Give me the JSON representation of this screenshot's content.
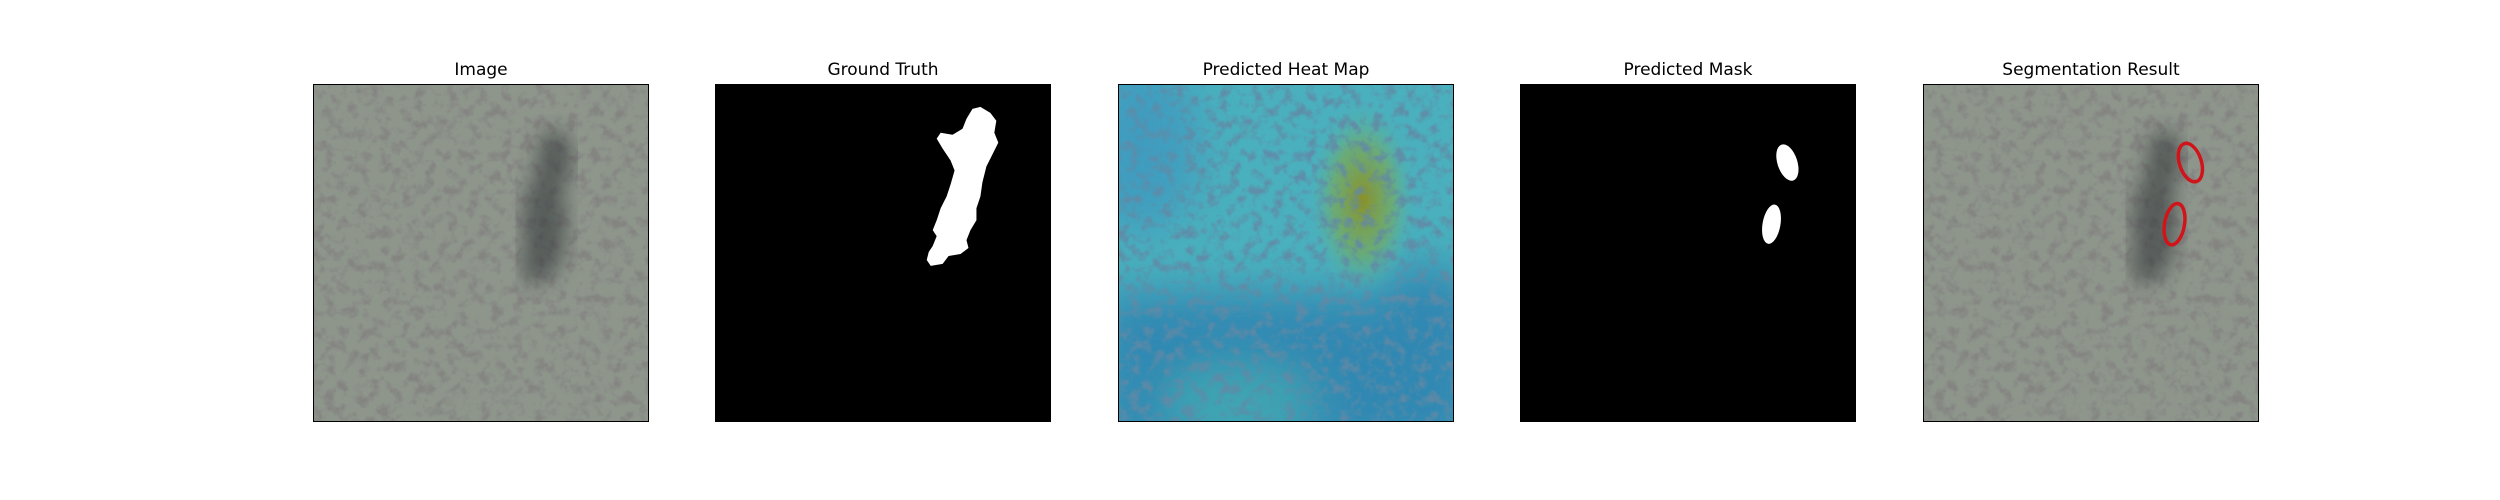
{
  "panels": [
    {
      "title": "Image"
    },
    {
      "title": "Ground Truth"
    },
    {
      "title": "Predicted Heat Map"
    },
    {
      "title": "Predicted Mask"
    },
    {
      "title": "Segmentation Result"
    }
  ],
  "colors": {
    "texture_base": "#8e968c",
    "spot_dark": "#3b3b38",
    "heat_low": "#2c7fb0",
    "heat_mid": "#48b6c0",
    "heat_high": "#8f9a2a",
    "mask_fg": "#ffffff",
    "mask_bg": "#000000",
    "contour": "#d0141a"
  }
}
